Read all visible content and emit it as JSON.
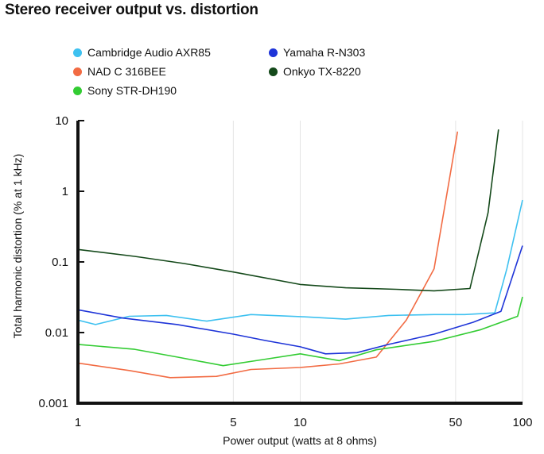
{
  "chart_data": {
    "type": "line",
    "title": "Stereo receiver output vs. distortion",
    "xlabel": "Power output (watts at 8 ohms)",
    "ylabel": "Total harmonic distortion (% at 1 kHz)",
    "x_scale": "log",
    "y_scale": "log",
    "xlim": [
      1,
      100
    ],
    "ylim": [
      0.001,
      10
    ],
    "x_ticks": [
      1,
      5,
      10,
      50,
      100
    ],
    "x_tick_labels": [
      "1",
      "5",
      "10",
      "50",
      "100"
    ],
    "y_ticks": [
      0.001,
      0.01,
      0.1,
      1,
      10
    ],
    "y_tick_labels": [
      "0.001",
      "0.01",
      "0.1",
      "1",
      "10"
    ],
    "grid": "vertical",
    "legend_position": "top",
    "series": [
      {
        "name": "Cambridge Audio AXR85",
        "color": "#3ec1f0",
        "points": [
          [
            1,
            0.015
          ],
          [
            1.2,
            0.013
          ],
          [
            1.7,
            0.017
          ],
          [
            2.5,
            0.0175
          ],
          [
            3.8,
            0.0145
          ],
          [
            6,
            0.018
          ],
          [
            10,
            0.0168
          ],
          [
            16,
            0.0155
          ],
          [
            25,
            0.0175
          ],
          [
            40,
            0.018
          ],
          [
            55,
            0.018
          ],
          [
            75,
            0.019
          ],
          [
            85,
            0.08
          ],
          [
            100,
            0.75
          ]
        ]
      },
      {
        "name": "NAD C 316BEE",
        "color": "#f26b43",
        "points": [
          [
            1,
            0.0037
          ],
          [
            1.7,
            0.0029
          ],
          [
            2.6,
            0.0023
          ],
          [
            4.2,
            0.0024
          ],
          [
            6,
            0.003
          ],
          [
            10,
            0.0032
          ],
          [
            15,
            0.0036
          ],
          [
            22,
            0.0045
          ],
          [
            30,
            0.015
          ],
          [
            40,
            0.08
          ],
          [
            51,
            7
          ]
        ]
      },
      {
        "name": "Sony STR-DH190",
        "color": "#33cc33",
        "points": [
          [
            1,
            0.0068
          ],
          [
            1.8,
            0.0058
          ],
          [
            2.8,
            0.0045
          ],
          [
            4.5,
            0.0034
          ],
          [
            7,
            0.0042
          ],
          [
            10,
            0.005
          ],
          [
            15,
            0.004
          ],
          [
            22,
            0.0057
          ],
          [
            40,
            0.0075
          ],
          [
            65,
            0.011
          ],
          [
            95,
            0.017
          ],
          [
            100,
            0.032
          ]
        ]
      },
      {
        "name": "Yamaha R-N303",
        "color": "#1e34d8",
        "points": [
          [
            1,
            0.021
          ],
          [
            1.6,
            0.016
          ],
          [
            2.8,
            0.013
          ],
          [
            5,
            0.0095
          ],
          [
            7,
            0.0077
          ],
          [
            10,
            0.0063
          ],
          [
            13,
            0.005
          ],
          [
            18,
            0.0052
          ],
          [
            25,
            0.0068
          ],
          [
            40,
            0.0095
          ],
          [
            60,
            0.014
          ],
          [
            80,
            0.02
          ],
          [
            100,
            0.17
          ]
        ]
      },
      {
        "name": "Onkyo TX-8220",
        "color": "#14491a",
        "points": [
          [
            1,
            0.15
          ],
          [
            1.8,
            0.12
          ],
          [
            3,
            0.095
          ],
          [
            5,
            0.072
          ],
          [
            10,
            0.048
          ],
          [
            16,
            0.043
          ],
          [
            27,
            0.041
          ],
          [
            40,
            0.039
          ],
          [
            58,
            0.042
          ],
          [
            70,
            0.5
          ],
          [
            78,
            7.5
          ]
        ]
      }
    ]
  }
}
